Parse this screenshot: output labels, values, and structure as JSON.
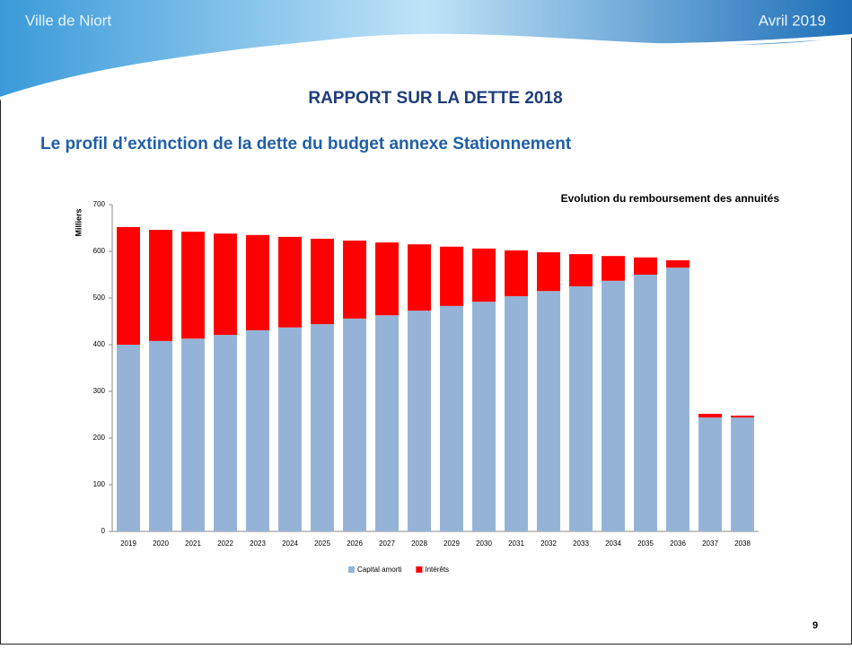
{
  "header": {
    "left": "Ville de Niort",
    "right": "Avril 2019"
  },
  "title": "RAPPORT SUR LA DETTE 2018",
  "subtitle": "Le profil d’extinction de la dette du budget annexe Stationnement",
  "page_number": "9",
  "chart_data": {
    "type": "stacked_bar",
    "title": "Evolution du remboursement des annuités",
    "ylabel": "Milliers",
    "categories": [
      "2019",
      "2020",
      "2021",
      "2022",
      "2023",
      "2024",
      "2025",
      "2026",
      "2027",
      "2028",
      "2029",
      "2030",
      "2031",
      "2032",
      "2033",
      "2034",
      "2035",
      "2036",
      "2037",
      "2038"
    ],
    "series": [
      {
        "name": "Capital amorti",
        "color": "#95b3d7",
        "values": [
          400,
          408,
          413,
          421,
          431,
          437,
          444,
          456,
          463,
          473,
          483,
          492,
          504,
          515,
          525,
          537,
          550,
          565,
          244,
          244
        ]
      },
      {
        "name": "Intérêts",
        "color": "#ff0000",
        "values": [
          252,
          238,
          229,
          217,
          204,
          194,
          183,
          167,
          156,
          142,
          127,
          114,
          98,
          83,
          69,
          53,
          37,
          16,
          8,
          4
        ]
      }
    ],
    "ylim": [
      0,
      700
    ],
    "yticks": [
      0,
      100,
      200,
      300,
      400,
      500,
      600,
      700
    ],
    "legend": "bottom"
  }
}
